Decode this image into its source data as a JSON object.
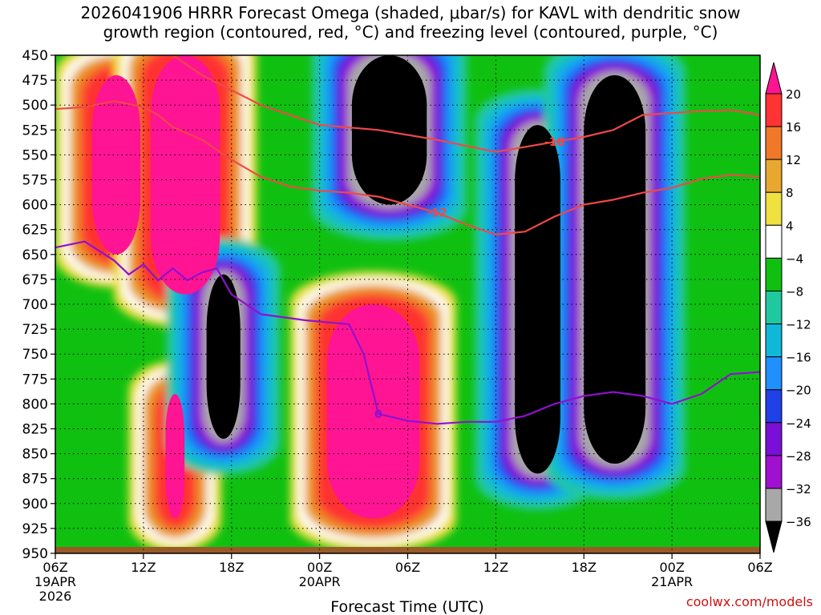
{
  "title_line1": "2026041906 HRRR Forecast Omega (shaded, μbar/s) for KAVL with dendritic snow",
  "title_line2": "growth region (contoured, red, °C) and freezing level (contoured, purple, °C)",
  "credit": "coolwx.com/models",
  "chart_data": {
    "type": "heatmap",
    "title": "2026041906 HRRR Forecast Omega (shaded, μbar/s) for KAVL with dendritic snow growth region (contoured, red, °C) and freezing level (contoured, purple, °C)",
    "xlabel": "Forecast Time (UTC)",
    "ylabel": "",
    "x_ticks": [
      {
        "hour": 0,
        "label": "06Z",
        "date": "19APR",
        "year": "2026"
      },
      {
        "hour": 6,
        "label": "12Z",
        "date": "",
        "year": ""
      },
      {
        "hour": 12,
        "label": "18Z",
        "date": "",
        "year": ""
      },
      {
        "hour": 18,
        "label": "00Z",
        "date": "20APR",
        "year": ""
      },
      {
        "hour": 24,
        "label": "06Z",
        "date": "",
        "year": ""
      },
      {
        "hour": 30,
        "label": "12Z",
        "date": "",
        "year": ""
      },
      {
        "hour": 36,
        "label": "18Z",
        "date": "",
        "year": ""
      },
      {
        "hour": 42,
        "label": "00Z",
        "date": "21APR",
        "year": ""
      },
      {
        "hour": 48,
        "label": "06Z",
        "date": "",
        "year": ""
      }
    ],
    "y_ticks": [
      450,
      475,
      500,
      525,
      550,
      575,
      600,
      625,
      650,
      675,
      700,
      725,
      750,
      775,
      800,
      825,
      850,
      875,
      900,
      925,
      950
    ],
    "xlim": [
      0,
      48
    ],
    "ylim": [
      450,
      950
    ],
    "grid": true,
    "colorbar": {
      "labels": [
        "20",
        "16",
        "12",
        "8",
        "4",
        "−4",
        "−8",
        "−12",
        "−16",
        "−20",
        "−24",
        "−28",
        "−32",
        "−36"
      ],
      "colors": [
        "#ff1493",
        "#ff3333",
        "#f07828",
        "#e8a830",
        "#f0e040",
        "#ffffff",
        "#10c010",
        "#20c8a0",
        "#10b8d8",
        "#1e90ff",
        "#2040e8",
        "#7a10d8",
        "#a010d0",
        "#a8a8a8",
        "#000000"
      ]
    },
    "series": [
      {
        "kind": "isotherm",
        "label": "-12",
        "color": "#f04848",
        "points": [
          [
            0,
            504
          ],
          [
            2,
            502
          ],
          [
            4,
            496
          ],
          [
            6,
            502
          ],
          [
            7,
            510
          ],
          [
            8,
            522
          ],
          [
            10,
            535
          ],
          [
            12,
            555
          ],
          [
            14,
            572
          ],
          [
            16,
            582
          ],
          [
            18,
            586
          ],
          [
            20,
            588
          ],
          [
            22,
            592
          ],
          [
            24,
            600
          ],
          [
            26,
            608
          ],
          [
            28,
            620
          ],
          [
            30,
            630
          ],
          [
            32,
            627
          ],
          [
            34,
            612
          ],
          [
            36,
            600
          ],
          [
            38,
            595
          ],
          [
            40,
            588
          ],
          [
            42,
            583
          ],
          [
            44,
            574
          ],
          [
            46,
            570
          ],
          [
            48,
            572
          ]
        ]
      },
      {
        "kind": "isotherm",
        "label": "-18",
        "color": "#f04848",
        "points": [
          [
            8,
            450
          ],
          [
            10,
            470
          ],
          [
            14,
            500
          ],
          [
            18,
            520
          ],
          [
            22,
            525
          ],
          [
            26,
            535
          ],
          [
            30,
            547
          ],
          [
            32,
            542
          ],
          [
            34,
            537
          ],
          [
            36,
            532
          ],
          [
            38,
            525
          ],
          [
            40,
            510
          ],
          [
            42,
            508
          ],
          [
            44,
            506
          ],
          [
            46,
            505
          ],
          [
            48,
            510
          ]
        ]
      },
      {
        "kind": "freezing-level",
        "label": "0",
        "color": "#9010d0",
        "points": [
          [
            0,
            643
          ],
          [
            2,
            637
          ],
          [
            4,
            656
          ],
          [
            5,
            670
          ],
          [
            6,
            660
          ],
          [
            7,
            676
          ],
          [
            8,
            664
          ],
          [
            9,
            676
          ],
          [
            10,
            668
          ],
          [
            11,
            664
          ],
          [
            12,
            690
          ],
          [
            14,
            710
          ],
          [
            17,
            716
          ],
          [
            20,
            720
          ],
          [
            21,
            750
          ],
          [
            22,
            810
          ],
          [
            24,
            817
          ],
          [
            26,
            820
          ],
          [
            28,
            818
          ],
          [
            30,
            818
          ],
          [
            32,
            812
          ],
          [
            34,
            800
          ],
          [
            36,
            792
          ],
          [
            38,
            788
          ],
          [
            40,
            792
          ],
          [
            42,
            800
          ],
          [
            44,
            790
          ],
          [
            46,
            770
          ],
          [
            48,
            768
          ]
        ]
      }
    ],
    "omega_cells": [
      {
        "x": [
          7.5,
          8.8
        ],
        "p": [
          790,
          915
        ],
        "value": 24
      },
      {
        "x": [
          2.5,
          5.8
        ],
        "p": [
          470,
          650
        ],
        "value": 22
      },
      {
        "x": [
          6.5,
          11.2
        ],
        "p": [
          450,
          690
        ],
        "value": 22
      },
      {
        "x": [
          18.5,
          24.8
        ],
        "p": [
          700,
          915
        ],
        "value": 22
      },
      {
        "x": [
          10.3,
          12.6
        ],
        "p": [
          670,
          835
        ],
        "value": -40
      },
      {
        "x": [
          20.2,
          25.3
        ],
        "p": [
          450,
          600
        ],
        "value": -40
      },
      {
        "x": [
          31.3,
          34.4
        ],
        "p": [
          520,
          870
        ],
        "value": -40
      },
      {
        "x": [
          36.0,
          40.2
        ],
        "p": [
          470,
          860
        ],
        "value": -40
      }
    ]
  }
}
